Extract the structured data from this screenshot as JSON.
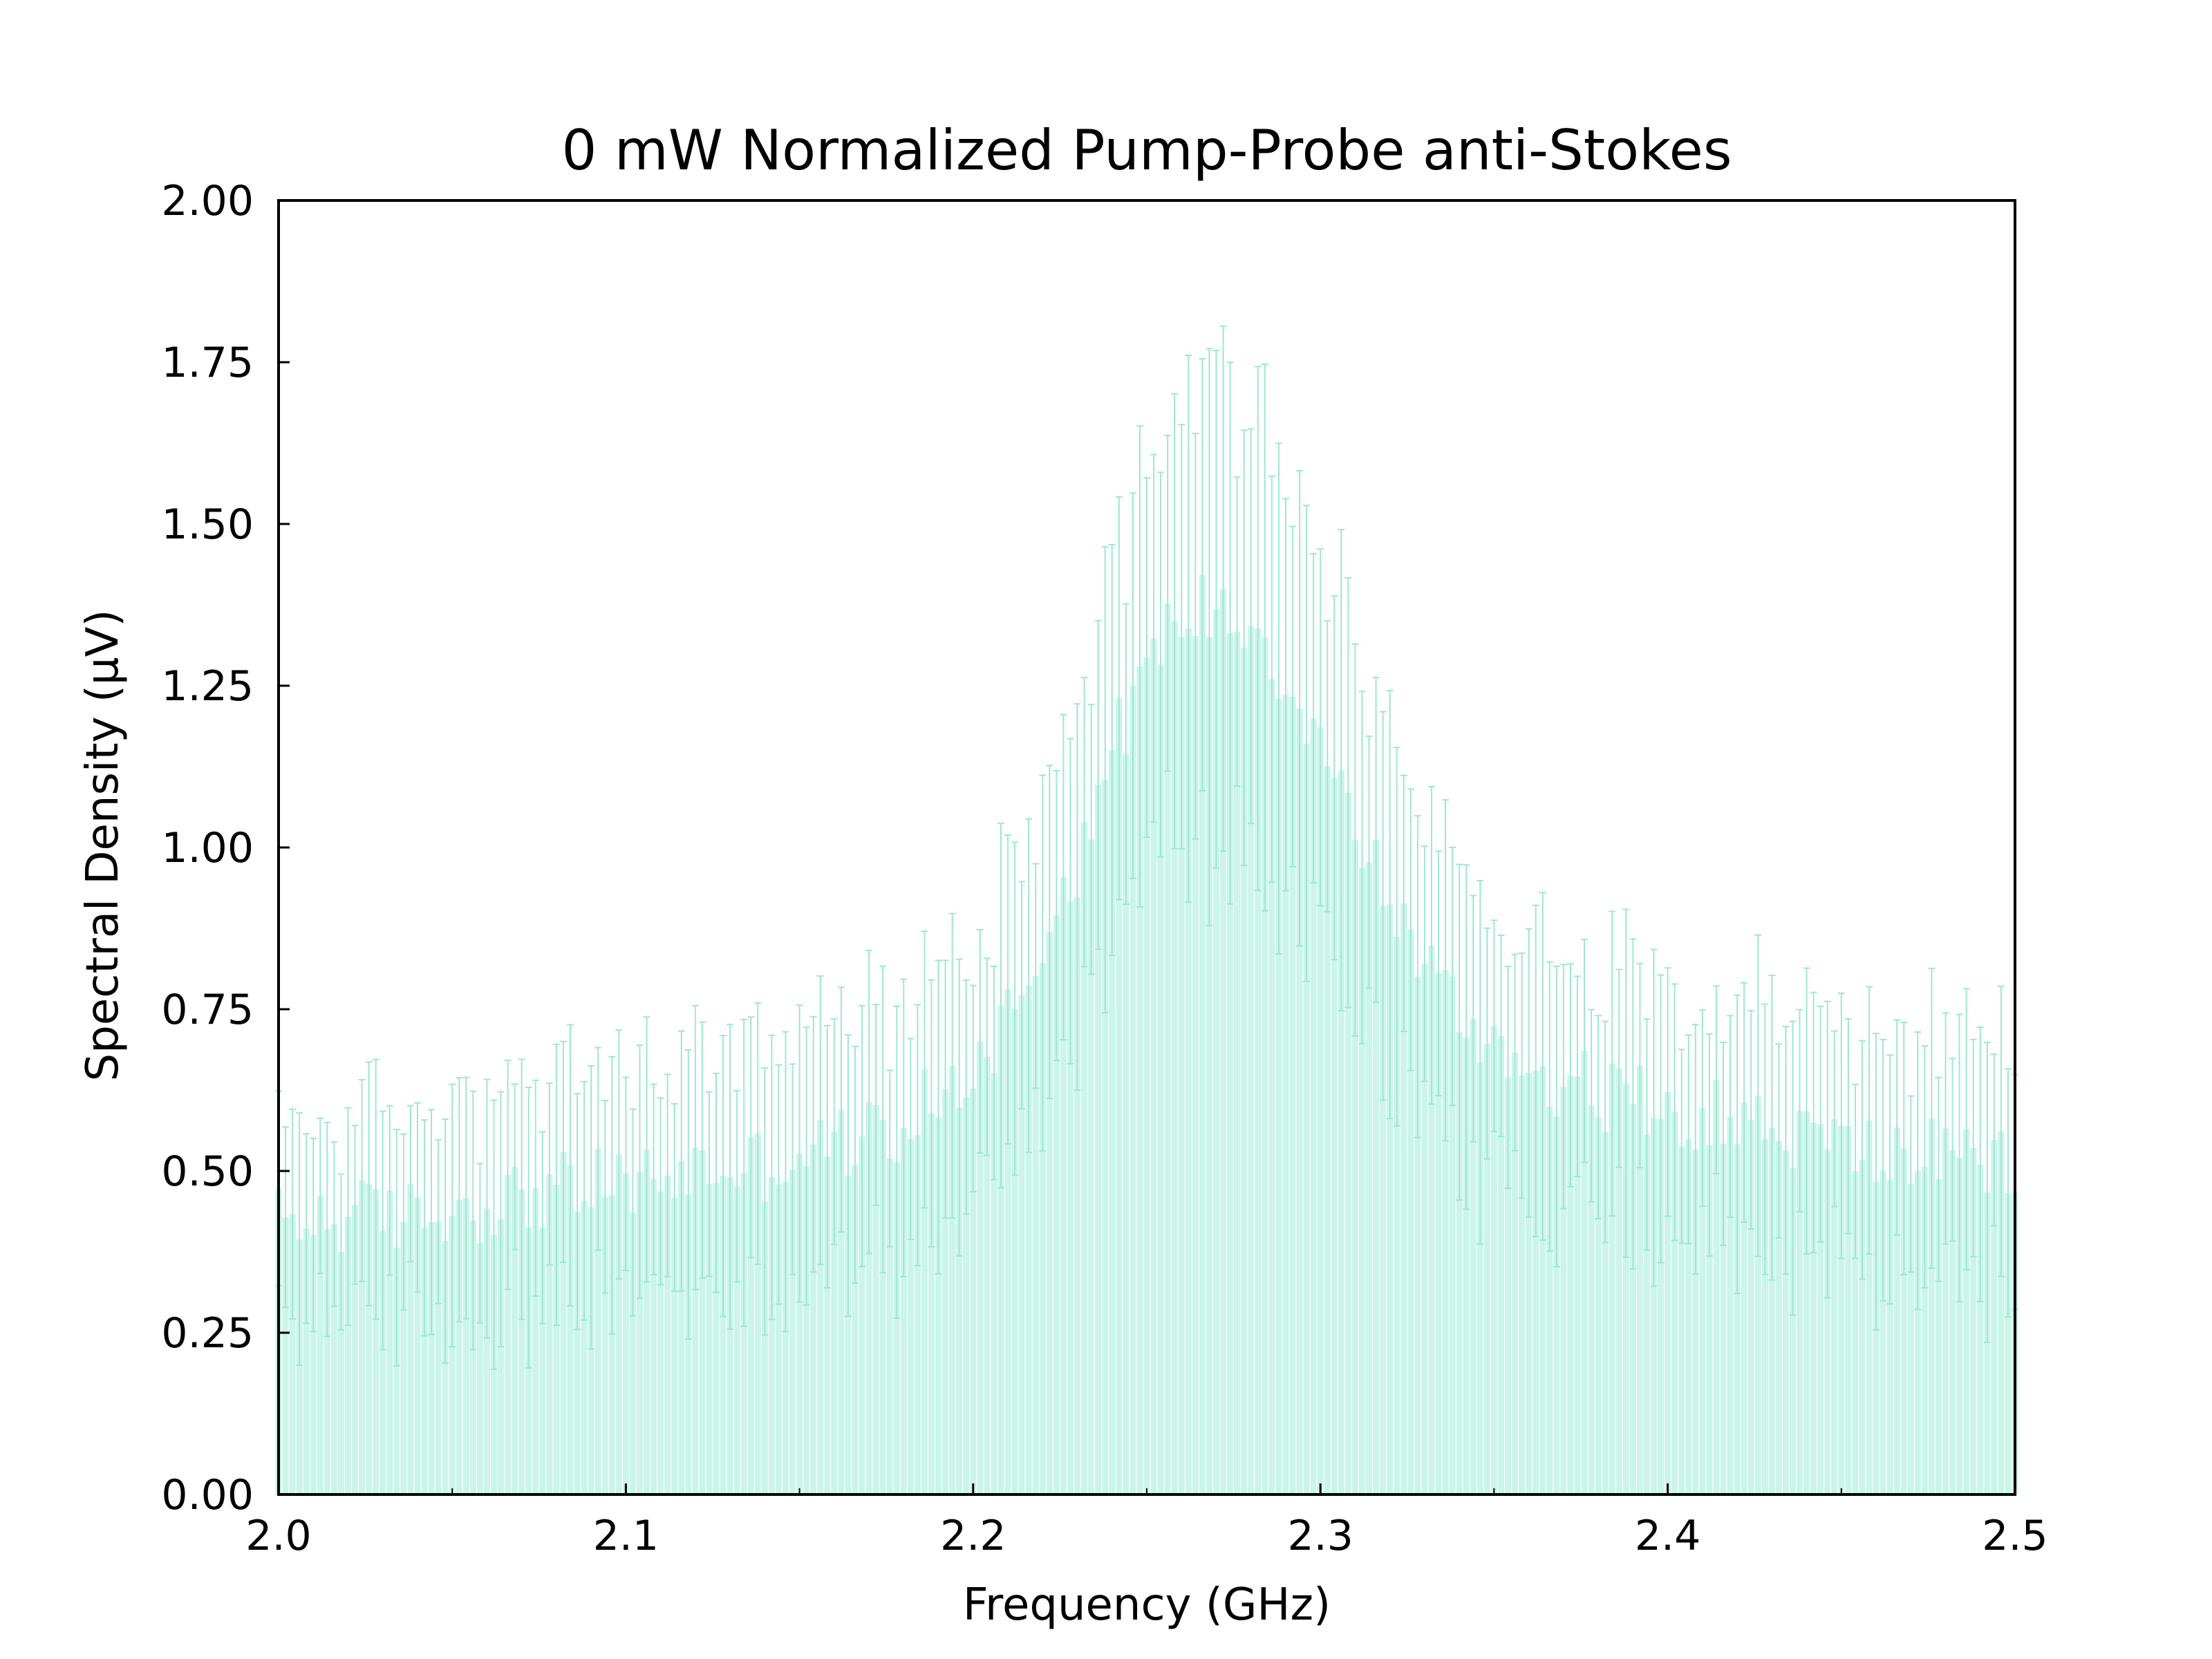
{
  "chart_data": {
    "type": "bar-with-errorbars",
    "title": "0 mW Normalized Pump-Probe anti-Stokes",
    "xlabel": "Frequency (GHz)",
    "ylabel": "Spectral Density (µV)",
    "xlim": [
      2.0,
      2.5
    ],
    "ylim": [
      0.0,
      2.0
    ],
    "x_ticks": [
      "2.0",
      "2.1",
      "2.2",
      "2.3",
      "2.4",
      "2.5"
    ],
    "y_ticks": [
      "0.00",
      "0.25",
      "0.50",
      "0.75",
      "1.00",
      "1.25",
      "1.50",
      "1.75",
      "2.00"
    ],
    "x_step": 0.002,
    "bar_color": "#ccf5ea",
    "error_color": "#9ee6d2",
    "series": [
      {
        "name": "anti-Stokes",
        "profile": [
          [
            2.0,
            0.42
          ],
          [
            2.02,
            0.43
          ],
          [
            2.04,
            0.43
          ],
          [
            2.06,
            0.45
          ],
          [
            2.08,
            0.47
          ],
          [
            2.1,
            0.48
          ],
          [
            2.12,
            0.5
          ],
          [
            2.14,
            0.51
          ],
          [
            2.16,
            0.54
          ],
          [
            2.18,
            0.57
          ],
          [
            2.2,
            0.66
          ],
          [
            2.21,
            0.74
          ],
          [
            2.22,
            0.86
          ],
          [
            2.23,
            0.98
          ],
          [
            2.24,
            1.15
          ],
          [
            2.25,
            1.28
          ],
          [
            2.26,
            1.36
          ],
          [
            2.27,
            1.38
          ],
          [
            2.28,
            1.35
          ],
          [
            2.29,
            1.27
          ],
          [
            2.3,
            1.16
          ],
          [
            2.31,
            1.03
          ],
          [
            2.32,
            0.92
          ],
          [
            2.33,
            0.82
          ],
          [
            2.34,
            0.74
          ],
          [
            2.36,
            0.66
          ],
          [
            2.38,
            0.62
          ],
          [
            2.4,
            0.6
          ],
          [
            2.42,
            0.58
          ],
          [
            2.44,
            0.55
          ],
          [
            2.46,
            0.53
          ],
          [
            2.48,
            0.52
          ],
          [
            2.5,
            0.5
          ]
        ],
        "noise": 0.06,
        "error_profile": [
          [
            2.0,
            0.15
          ],
          [
            2.2,
            0.2
          ],
          [
            2.24,
            0.3
          ],
          [
            2.27,
            0.35
          ],
          [
            2.3,
            0.3
          ],
          [
            2.34,
            0.22
          ],
          [
            2.5,
            0.18
          ]
        ]
      }
    ]
  }
}
